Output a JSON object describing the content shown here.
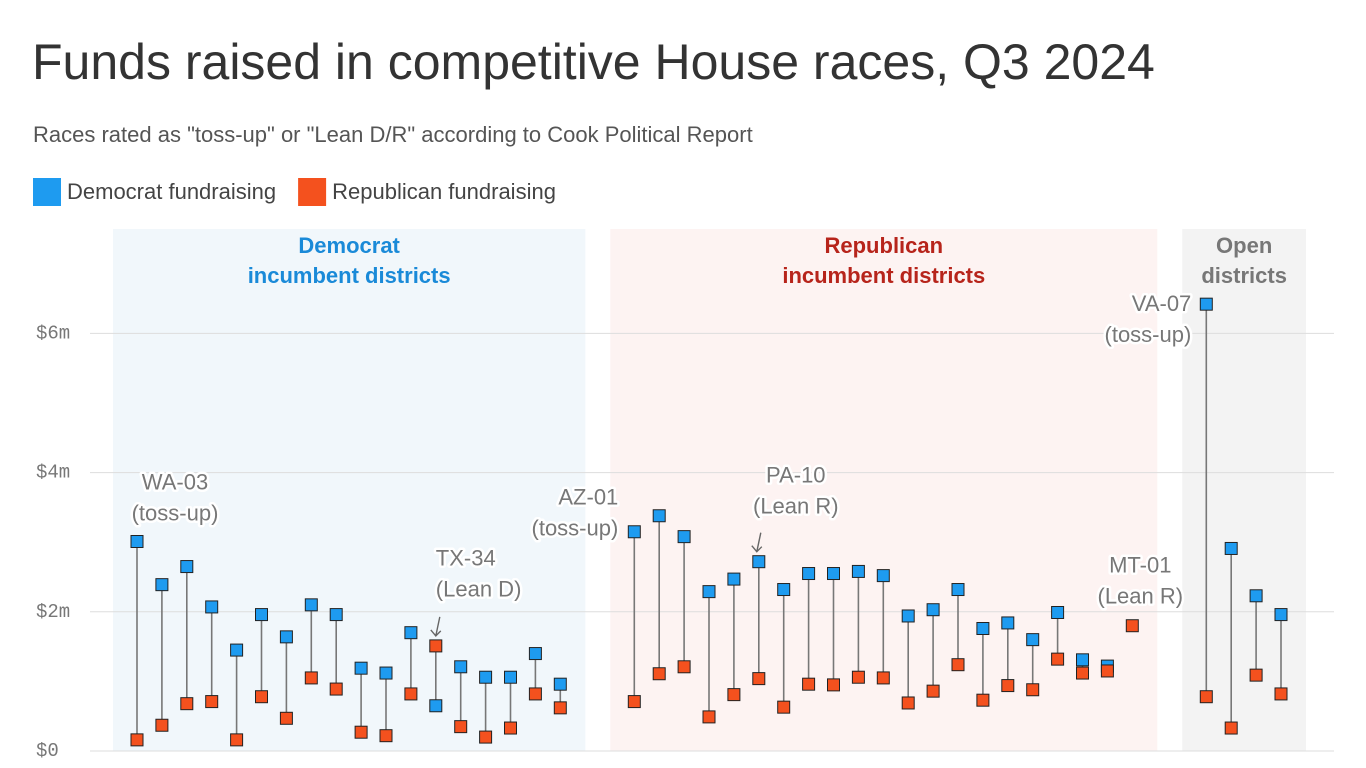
{
  "chart_data": {
    "type": "dumbbell",
    "title": "Funds raised in competitive House races, Q3 2024",
    "subtitle": "Races rated as \"toss-up\" or \"Lean D/R\" according to Cook Political Report",
    "series": [
      {
        "name": "Democrat fundraising",
        "color": "#1e9bf0"
      },
      {
        "name": "Republican fundraising",
        "color": "#f4511e"
      }
    ],
    "ylim": [
      0,
      7.5
    ],
    "yticks": [
      {
        "value": 0,
        "label": "$0"
      },
      {
        "value": 2,
        "label": "$2m"
      },
      {
        "value": 4,
        "label": "$4m"
      },
      {
        "value": 6,
        "label": "$6m"
      }
    ],
    "grid": true,
    "groups": [
      {
        "title": [
          "Democrat",
          "incumbent districts"
        ],
        "color": "#1a8ad8",
        "background": "#f1f7fb",
        "categories": [
          "WA-03",
          null,
          null,
          null,
          null,
          null,
          null,
          null,
          null,
          null,
          null,
          null,
          "TX-34",
          null,
          null,
          null,
          null,
          null
        ],
        "notes": [
          "(toss-up)",
          null,
          null,
          null,
          null,
          null,
          null,
          null,
          null,
          null,
          null,
          null,
          "(Lean D)",
          null,
          null,
          null,
          null,
          null
        ],
        "series": [
          {
            "values": [
              3.01,
              2.39,
              2.65,
              2.07,
              1.45,
              1.96,
              1.64,
              2.1,
              1.96,
              1.19,
              1.12,
              1.7,
              0.65,
              1.21,
              1.06,
              1.06,
              1.4,
              0.96
            ]
          },
          {
            "values": [
              0.16,
              0.37,
              0.68,
              0.71,
              0.16,
              0.78,
              0.47,
              1.05,
              0.89,
              0.27,
              0.22,
              0.82,
              1.51,
              0.35,
              0.2,
              0.33,
              0.82,
              0.62
            ]
          }
        ]
      },
      {
        "title": [
          "Republican",
          "incumbent districts"
        ],
        "color": "#b7241b",
        "background": "#fdf3f2",
        "categories": [
          "AZ-01",
          null,
          null,
          null,
          null,
          "PA-10",
          null,
          null,
          null,
          null,
          null,
          null,
          null,
          null,
          null,
          null,
          null,
          null,
          null,
          null,
          "MT-01"
        ],
        "notes": [
          "(toss-up)",
          null,
          null,
          null,
          null,
          "(Lean R)",
          null,
          null,
          null,
          null,
          null,
          null,
          null,
          null,
          null,
          null,
          null,
          null,
          null,
          null,
          "(Lean R)"
        ],
        "series": [
          {
            "values": [
              3.15,
              3.38,
              3.08,
              2.29,
              2.47,
              2.72,
              2.32,
              2.55,
              2.55,
              2.58,
              2.52,
              1.94,
              2.03,
              2.32,
              1.76,
              1.84,
              1.6,
              1.99,
              1.31,
              1.22,
              null
            ]
          },
          {
            "values": [
              0.71,
              1.11,
              1.21,
              0.49,
              0.81,
              1.04,
              0.63,
              0.96,
              0.95,
              1.06,
              1.05,
              0.69,
              0.86,
              1.24,
              0.73,
              0.94,
              0.88,
              1.32,
              1.12,
              1.15,
              1.8
            ]
          }
        ]
      },
      {
        "title": [
          "Open",
          "districts"
        ],
        "color": "#777777",
        "background": "#f3f3f3",
        "categories": [
          "VA-07",
          null,
          null,
          null
        ],
        "notes": [
          "(toss-up)",
          null,
          null,
          null
        ],
        "series": [
          {
            "values": [
              6.42,
              2.91,
              2.23,
              1.96
            ]
          },
          {
            "values": [
              0.78,
              0.33,
              1.09,
              0.82
            ]
          }
        ]
      }
    ]
  }
}
